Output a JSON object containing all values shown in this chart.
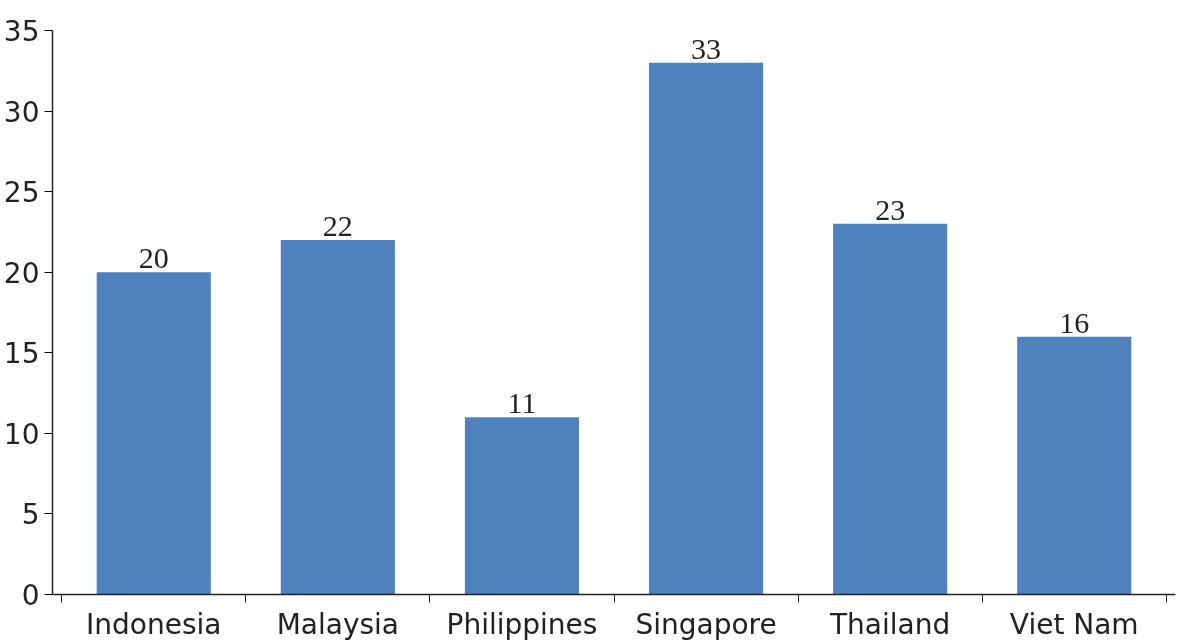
{
  "chart_data": {
    "type": "bar",
    "categories": [
      "Indonesia",
      "Malaysia",
      "Philippines",
      "Singapore",
      "Thailand",
      "Viet Nam"
    ],
    "values": [
      20,
      22,
      11,
      33,
      23,
      16
    ],
    "color": "#4f81bd",
    "ylim": [
      0,
      35
    ],
    "yticks": [
      0,
      5,
      10,
      15,
      20,
      25,
      30,
      35
    ],
    "grid": false,
    "data_labels": true
  }
}
